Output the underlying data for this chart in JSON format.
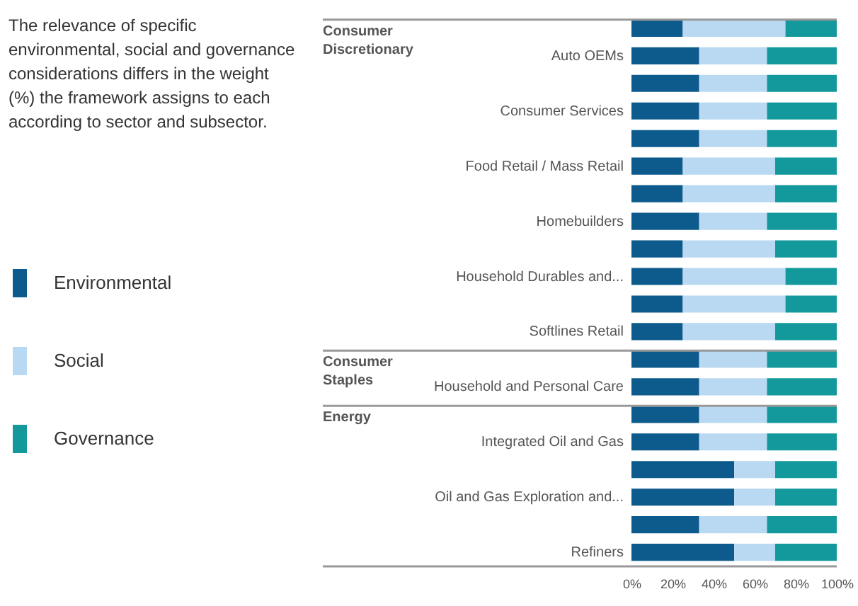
{
  "chart_data": {
    "type": "bar",
    "orientation": "horizontal",
    "stacked": true,
    "title": "The relevance of specific environmental, social and governance considerations differs in the weight (%) the framework assigns to each according to sector and subsector.",
    "categories": [
      null,
      "Auto OEMs",
      null,
      "Consumer Services",
      null,
      "Food Retail / Mass Retail",
      null,
      "Homebuilders",
      null,
      "Household Durables and...",
      null,
      "Softlines Retail",
      null,
      "Household and Personal Care",
      null,
      "Integrated Oil and Gas",
      null,
      "Oil and Gas Exploration and...",
      null,
      "Refiners"
    ],
    "series": [
      {
        "name": "Environmental",
        "color": "#0d5b8c",
        "values": [
          25,
          33,
          33,
          33,
          33,
          25,
          25,
          33,
          25,
          25,
          25,
          25,
          33,
          33,
          33,
          33,
          50,
          50,
          33,
          50
        ]
      },
      {
        "name": "Social",
        "color": "#b9d9f2",
        "values": [
          50,
          33,
          33,
          33,
          33,
          45,
          45,
          33,
          45,
          50,
          50,
          45,
          33,
          33,
          33,
          33,
          20,
          20,
          33,
          20
        ]
      },
      {
        "name": "Governance",
        "color": "#13999c",
        "values": [
          25,
          34,
          34,
          34,
          34,
          30,
          30,
          34,
          30,
          25,
          25,
          30,
          34,
          34,
          34,
          34,
          30,
          30,
          34,
          30
        ]
      }
    ],
    "xlim": [
      0,
      100
    ],
    "xticks": [
      {
        "value": 0,
        "label": "0%"
      },
      {
        "value": 20,
        "label": "20%"
      },
      {
        "value": 40,
        "label": "40%"
      },
      {
        "value": 60,
        "label": "60%"
      },
      {
        "value": 80,
        "label": "80%"
      },
      {
        "value": 100,
        "label": "100%"
      }
    ],
    "annotations": [
      "Consumer Discretionary",
      "Consumer Staples",
      "Energy"
    ],
    "legend": "left",
    "grid": false
  }
}
